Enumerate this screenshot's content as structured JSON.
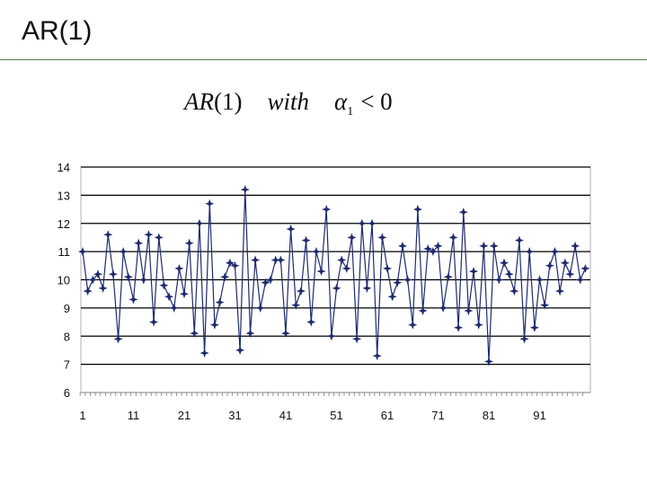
{
  "slide": {
    "title": "AR(1)",
    "formula": {
      "lhs": "AR",
      "lhs_arg": "(1)",
      "word": "with",
      "symbol": "α",
      "symbol_subscript": "1",
      "relation": "< 0"
    }
  },
  "colors": {
    "series": "#1f2a6e",
    "title_rule": "#4a7a4f",
    "gridline": "#000000"
  },
  "chart_data": {
    "type": "line",
    "marker": "star",
    "title": "",
    "xlabel": "",
    "ylabel": "",
    "xlim": [
      1,
      100
    ],
    "ylim": [
      6,
      14
    ],
    "grid": true,
    "legend": "none",
    "x_ticks": [
      1,
      11,
      21,
      31,
      41,
      51,
      61,
      71,
      81,
      91
    ],
    "y_ticks": [
      6,
      7,
      8,
      9,
      10,
      11,
      12,
      13,
      14
    ],
    "series": [
      {
        "values": [
          11.0,
          9.6,
          10.0,
          10.2,
          9.7,
          11.6,
          10.2,
          7.9,
          11.0,
          10.1,
          9.3,
          11.3,
          10.0,
          11.6,
          8.5,
          11.5,
          9.8,
          9.4,
          9.0,
          10.4,
          9.5,
          11.3,
          8.1,
          12.0,
          7.4,
          12.7,
          8.4,
          9.2,
          10.1,
          10.6,
          10.5,
          7.5,
          13.2,
          8.1,
          10.7,
          9.0,
          9.9,
          10.0,
          10.7,
          10.7,
          8.1,
          11.8,
          9.1,
          9.6,
          11.4,
          8.5,
          11.0,
          10.3,
          12.5,
          8.0,
          9.7,
          10.7,
          10.4,
          11.5,
          7.9,
          12.0,
          9.7,
          12.0,
          7.3,
          11.5,
          10.4,
          9.4,
          9.9,
          11.2,
          10.0,
          8.4,
          12.5,
          8.9,
          11.1,
          11.0,
          11.2,
          9.0,
          10.1,
          11.5,
          8.3,
          12.4,
          8.9,
          10.3,
          8.4,
          11.2,
          7.1,
          11.2,
          10.0,
          10.6,
          10.2,
          9.6,
          11.4,
          7.9,
          11.0,
          8.3,
          10.0,
          9.1,
          10.5,
          11.0,
          9.6,
          10.6,
          10.2,
          11.2,
          10.0,
          10.4
        ]
      }
    ]
  }
}
